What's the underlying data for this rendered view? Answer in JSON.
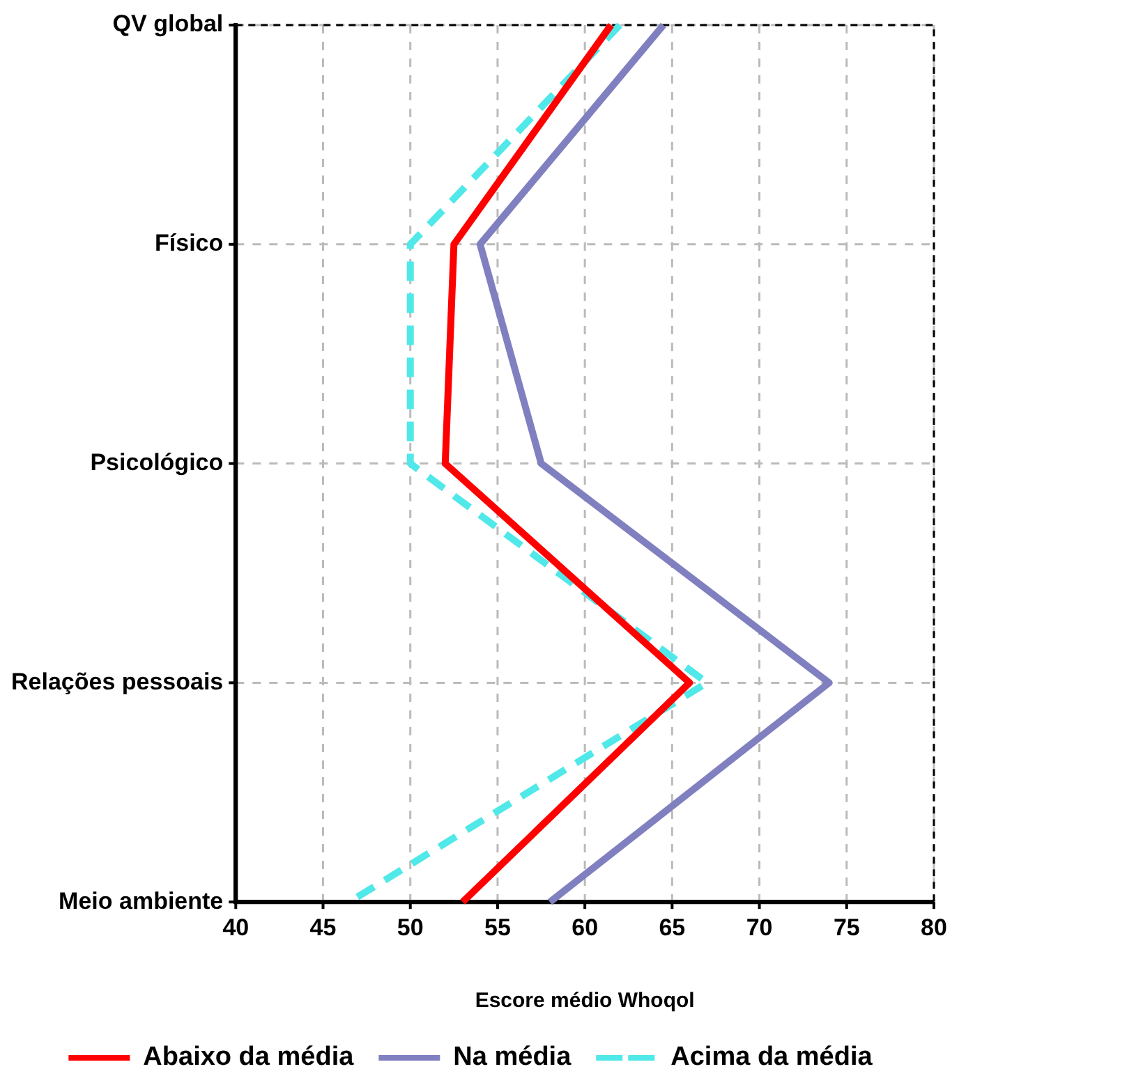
{
  "chart_data": {
    "type": "line",
    "orientation": "horizontal",
    "xlabel": "Escore médio Whoqol",
    "categories": [
      "QV global",
      "Físico",
      "Psicológico",
      "Relações pessoais",
      "Meio ambiente"
    ],
    "xlim": [
      40,
      80
    ],
    "xticks": [
      40,
      45,
      50,
      55,
      60,
      65,
      70,
      75,
      80
    ],
    "grid": true,
    "legend": "bottom",
    "marker": "none",
    "series": [
      {
        "name": "Abaixo da média",
        "color": "#ff0000",
        "line_style": "solid",
        "values": [
          61.5,
          52.5,
          52,
          66,
          53
        ]
      },
      {
        "name": "Na média",
        "color": "#8080c0",
        "line_style": "solid",
        "values": [
          64.5,
          54,
          57.5,
          74,
          58
        ]
      },
      {
        "name": "Acima da média",
        "color": "#50e8e8",
        "line_style": "dashed",
        "values": [
          62,
          50,
          50,
          67,
          46.5
        ]
      }
    ]
  }
}
